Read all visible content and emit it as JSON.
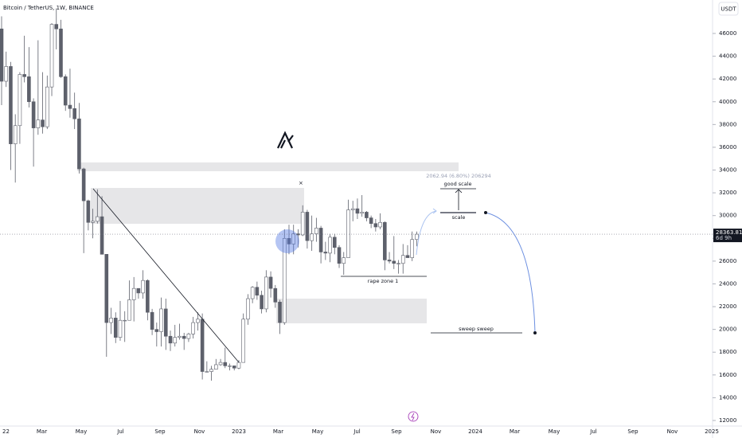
{
  "header": {
    "title": "Bitcoin / TetherUS, 1W, BINANCE",
    "currency": "USDT"
  },
  "annotations": {
    "measure": "2062.94 (6.80%) 206294",
    "good_scale": "good scale",
    "scale": "scale",
    "rape_zone": "rape zone 1",
    "sweep": "sweep sweep"
  },
  "chart_data": {
    "type": "candlestick",
    "x_labels": [
      "22",
      "Mar",
      "May",
      "Jul",
      "Sep",
      "Nov",
      "2023",
      "Mar",
      "May",
      "Jul",
      "Sep",
      "Nov",
      "2024",
      "Mar",
      "May",
      "Jul",
      "Sep",
      "Nov",
      "2025"
    ],
    "open": [
      46400,
      41800,
      43100,
      36300,
      37900,
      42400,
      42200,
      40000,
      37700,
      38400,
      37800,
      41300,
      46800,
      46400,
      42200,
      39700,
      39400,
      38500,
      34100,
      31300,
      29400,
      29500,
      29900,
      26600,
      20600,
      21000,
      19300,
      20800,
      20800,
      22600,
      23600,
      23200,
      24300,
      21500,
      20000,
      19800,
      21800,
      19400,
      18800,
      19300,
      19400,
      19200,
      19600,
      20600,
      20900,
      16300,
      16300,
      16500,
      16900,
      17100,
      16800,
      16800,
      16600,
      17100,
      20900,
      22700,
      23700,
      23000,
      21800,
      24600,
      23600,
      22400,
      20600,
      28000,
      27500,
      28400,
      28300,
      30300,
      27800,
      28400,
      28900,
      26800,
      26700,
      28100,
      27200,
      25800,
      26300,
      30500,
      30600,
      30200,
      30300,
      29800,
      29300,
      29000,
      29400,
      26100,
      26000,
      25800,
      25800,
      26500,
      26300,
      27900
    ],
    "high": [
      47500,
      44400,
      43500,
      38900,
      42600,
      45800,
      44800,
      40300,
      45400,
      42600,
      42300,
      46900,
      48200,
      47200,
      42400,
      42900,
      40800,
      39900,
      34200,
      31400,
      30600,
      32300,
      31700,
      26600,
      21900,
      21500,
      22500,
      21600,
      24300,
      24600,
      23600,
      25200,
      24400,
      21800,
      20600,
      22800,
      22700,
      19900,
      20400,
      20500,
      19700,
      19700,
      21100,
      21500,
      21400,
      17200,
      16800,
      17400,
      17400,
      18400,
      17000,
      16800,
      17300,
      21400,
      23100,
      23800,
      24200,
      23400,
      25200,
      25100,
      23900,
      22600,
      28800,
      29200,
      29200,
      28800,
      30900,
      30500,
      30000,
      29800,
      29100,
      27700,
      28400,
      28400,
      27400,
      26800,
      31400,
      31300,
      31500,
      31800,
      30400,
      30000,
      29700,
      30200,
      29500,
      26800,
      28200,
      26100,
      27500,
      27400,
      28600,
      28600
    ],
    "low": [
      39700,
      41300,
      34000,
      32900,
      36300,
      41700,
      39500,
      34300,
      37100,
      37200,
      37600,
      40500,
      44600,
      42100,
      39200,
      38600,
      37600,
      33700,
      26700,
      28700,
      28000,
      29300,
      26600,
      17600,
      19600,
      18800,
      19000,
      18900,
      20800,
      20700,
      22700,
      22700,
      20800,
      19500,
      18500,
      18500,
      18200,
      18100,
      18500,
      19100,
      18200,
      18900,
      19200,
      19900,
      15600,
      16300,
      15500,
      16500,
      16800,
      16600,
      16400,
      16400,
      16500,
      17100,
      20400,
      22300,
      22600,
      21400,
      21500,
      22800,
      21900,
      19600,
      20400,
      26600,
      26600,
      27200,
      28200,
      27100,
      26900,
      27700,
      25800,
      26100,
      25900,
      26600,
      25400,
      24800,
      26300,
      29500,
      29700,
      29900,
      29500,
      28900,
      28600,
      28800,
      25200,
      25800,
      25300,
      24900,
      24900,
      26400,
      26000,
      27300
    ],
    "close": [
      41800,
      43100,
      36300,
      37900,
      42400,
      42200,
      40000,
      37700,
      38400,
      37800,
      41300,
      46800,
      46400,
      42200,
      39700,
      39400,
      38500,
      34100,
      31300,
      29400,
      29500,
      29900,
      26600,
      20600,
      21000,
      19300,
      20800,
      20800,
      22600,
      23600,
      23200,
      24300,
      21500,
      20000,
      19800,
      21800,
      19400,
      18800,
      19300,
      19400,
      19200,
      19600,
      20600,
      20900,
      16300,
      16300,
      16500,
      16900,
      17100,
      16800,
      16800,
      16600,
      17100,
      20900,
      22700,
      23700,
      23000,
      21800,
      24600,
      23600,
      22400,
      20600,
      28000,
      27500,
      28400,
      28300,
      30300,
      27800,
      28400,
      28900,
      26800,
      26700,
      28100,
      27200,
      25800,
      26300,
      30500,
      30600,
      30200,
      30300,
      29800,
      29300,
      29000,
      29400,
      26100,
      26000,
      25800,
      25800,
      26500,
      26300,
      27900,
      28363.81
    ],
    "up_color": "#ffffff",
    "down_color": "#5d606b",
    "wick_color": "#5d606b",
    "ylim": [
      11510,
      48938
    ],
    "yticks": [
      12000,
      14000,
      16000,
      18000,
      20000,
      22000,
      24000,
      26000,
      28000,
      30000,
      32000,
      34000,
      36000,
      38000,
      40000,
      42000,
      44000,
      46000
    ],
    "last_price": 28363.81,
    "countdown": "6d 9h"
  }
}
